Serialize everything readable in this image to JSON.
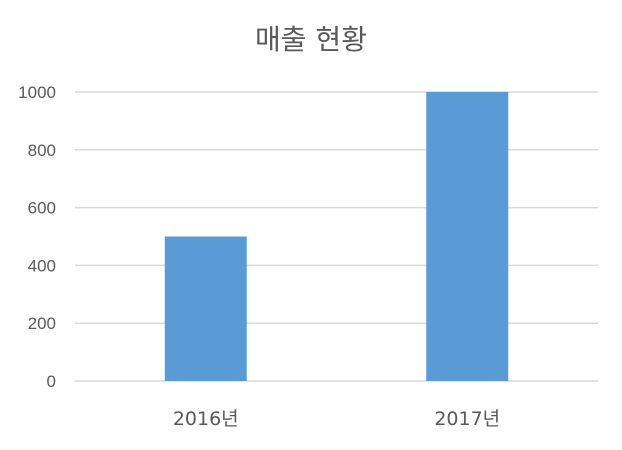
{
  "chart_data": {
    "type": "bar",
    "title": "매출 현황",
    "categories": [
      "2016년",
      "2017년"
    ],
    "values": [
      500,
      1000
    ],
    "ylim": [
      0,
      1000
    ],
    "yticks": [
      0,
      200,
      400,
      600,
      800,
      1000
    ],
    "grid": true,
    "legend": "none",
    "bar_color": "#5B9BD5",
    "grid_color": "#D9D9D9",
    "text_color": "#595959"
  }
}
